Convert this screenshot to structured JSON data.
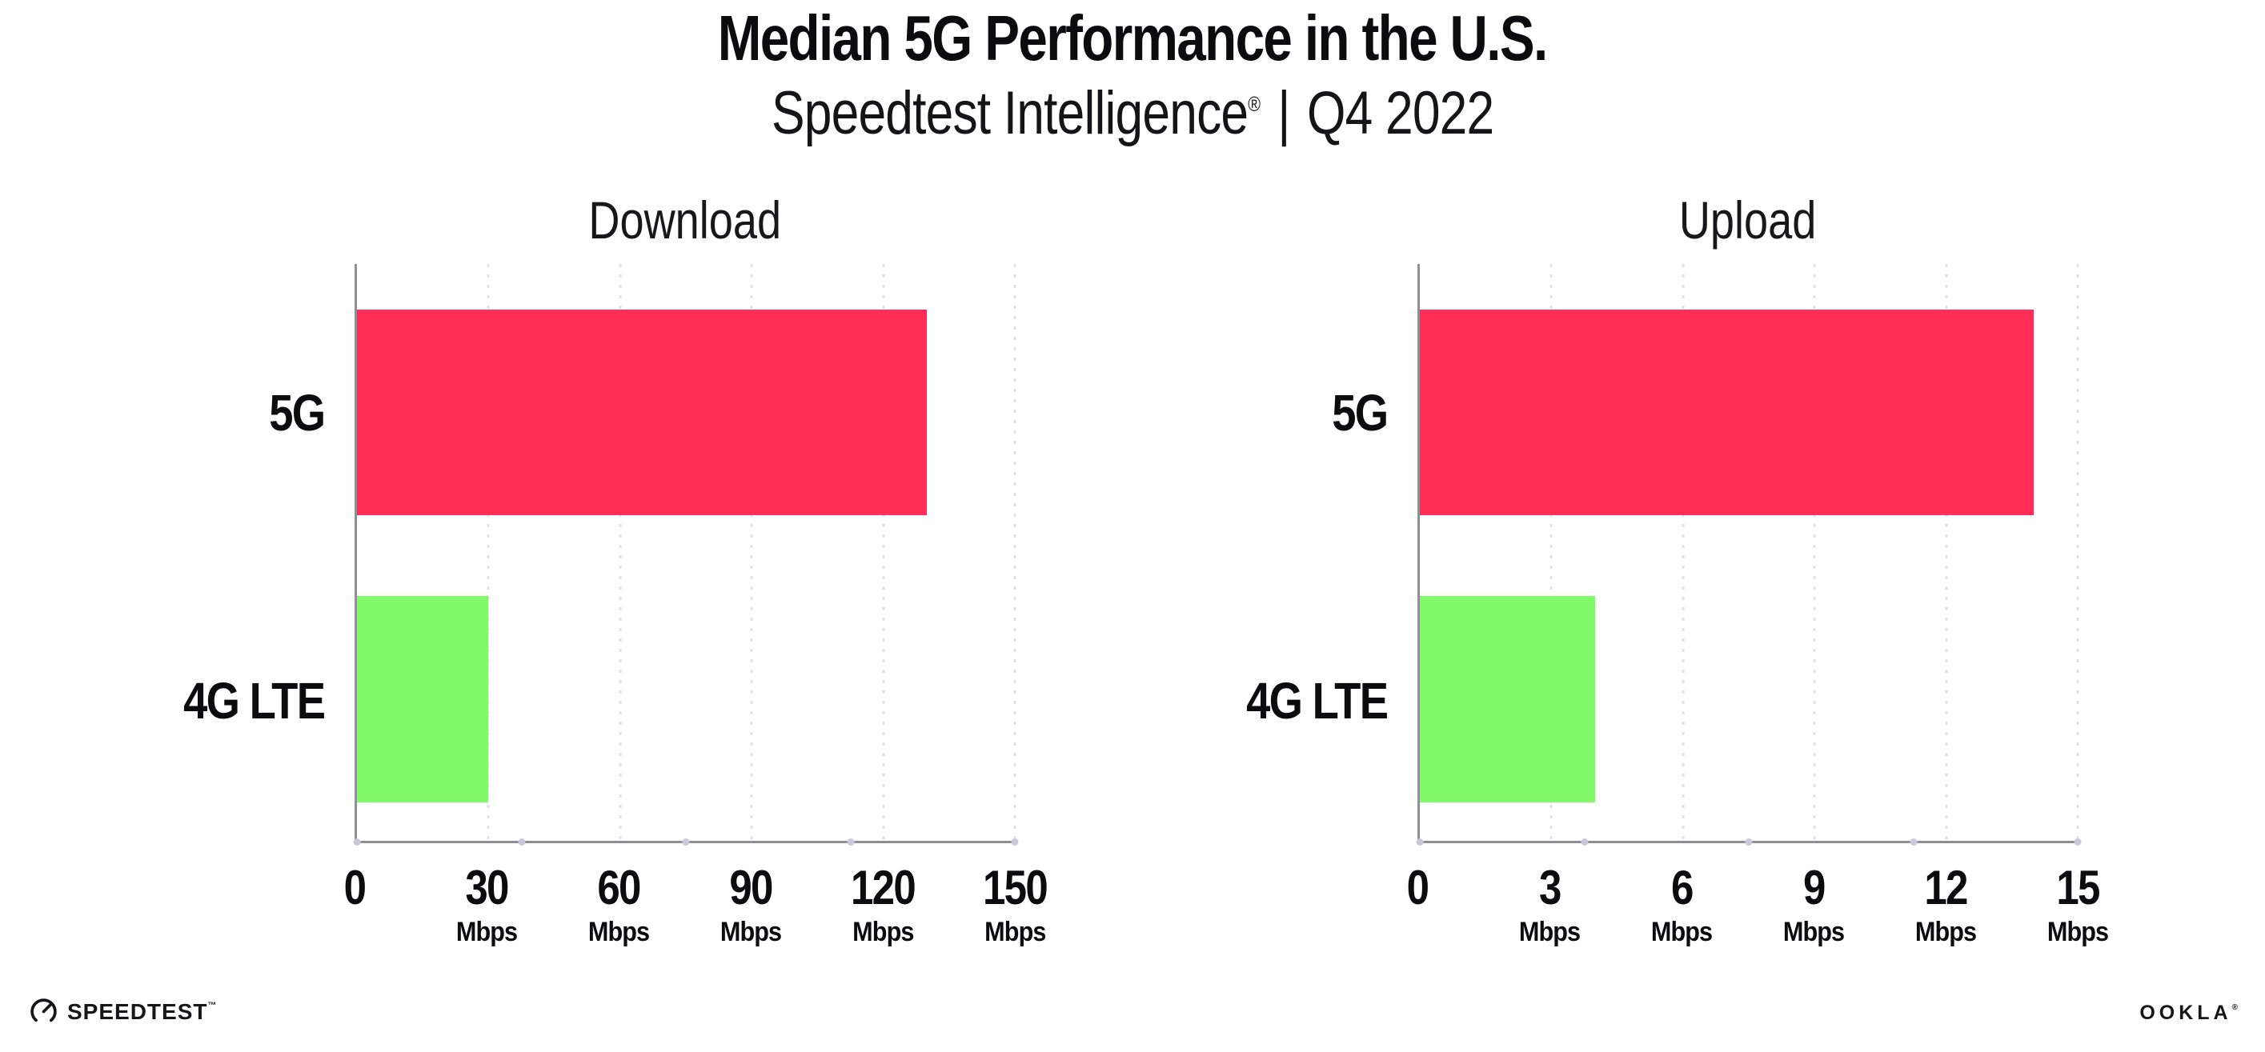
{
  "header": {
    "title": "Median 5G Performance in the U.S.",
    "subtitle_brand": "Speedtest Intelligence",
    "subtitle_reg": "®",
    "subtitle_divider": "|",
    "subtitle_period": "Q4 2022"
  },
  "colors": {
    "bar_5g": "#ff2e57",
    "bar_4g_lte": "#80fa68",
    "gridline": "#e2e2ed",
    "axis_line": "#8f8f98",
    "axis_dot": "#c9c9dc",
    "text": "#0c0c0e"
  },
  "chart_data": [
    {
      "type": "bar",
      "title": "Download",
      "orientation": "horizontal",
      "categories": [
        "5G",
        "4G LTE"
      ],
      "values": [
        130,
        30
      ],
      "unit": "Mbps",
      "xlim": [
        0,
        150
      ],
      "ticks": [
        0,
        30,
        60,
        90,
        120,
        150
      ],
      "tick_unit": "Mbps",
      "bar_colors": [
        "#ff2e57",
        "#80fa68"
      ],
      "grid": "dotted-vertical-on"
    },
    {
      "type": "bar",
      "title": "Upload",
      "orientation": "horizontal",
      "categories": [
        "5G",
        "4G LTE"
      ],
      "values": [
        14,
        4
      ],
      "unit": "Mbps",
      "xlim": [
        0,
        15
      ],
      "ticks": [
        0,
        3,
        6,
        9,
        12,
        15
      ],
      "tick_unit": "Mbps",
      "bar_colors": [
        "#ff2e57",
        "#80fa68"
      ],
      "grid": "dotted-vertical-on"
    }
  ],
  "footer": {
    "speedtest_label": "SPEEDTEST",
    "speedtest_tm": "™",
    "ookla_label": "OOKLA",
    "ookla_reg": "®"
  }
}
